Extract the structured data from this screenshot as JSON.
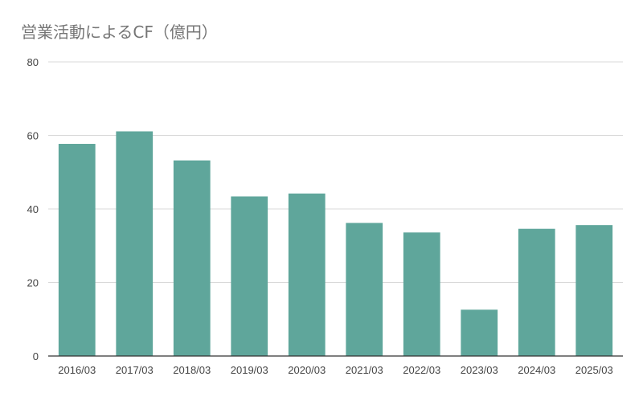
{
  "chart_data": {
    "type": "bar",
    "title": "営業活動によるCF（億円）",
    "xlabel": "",
    "ylabel": "",
    "categories": [
      "2016/03",
      "2017/03",
      "2018/03",
      "2019/03",
      "2020/03",
      "2021/03",
      "2022/03",
      "2023/03",
      "2024/03",
      "2025/03"
    ],
    "values": [
      57.7,
      61.1,
      53.2,
      43.4,
      44.2,
      36.2,
      33.6,
      12.6,
      34.6,
      35.6
    ],
    "ylim": [
      0,
      80
    ],
    "yticks": [
      "0",
      "20",
      "40",
      "60",
      "80"
    ],
    "grid": true,
    "legend": "none",
    "colors": {
      "bar": "#5fa69b",
      "grid": "#d9d9d9",
      "axis": "#333333"
    }
  }
}
